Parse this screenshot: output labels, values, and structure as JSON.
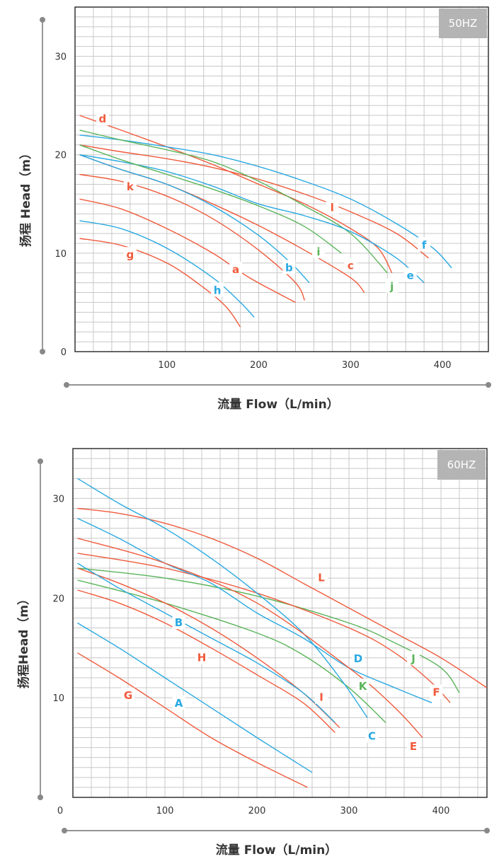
{
  "colors": {
    "red": "#f05a3c",
    "blue": "#29a9e1",
    "green": "#5ab45a",
    "grid": "#c8c8c8",
    "axis": "#555555",
    "badge": "#b4b4b4"
  },
  "chart_data": [
    {
      "type": "line",
      "badge": "50HZ",
      "xlabel": "流量 Flow（L/min）",
      "ylabel": "扬程 Head（m）",
      "xlim": [
        0,
        450
      ],
      "ylim": [
        0,
        35
      ],
      "xticks": [
        "100",
        "200",
        "300",
        "400"
      ],
      "yticks": [
        "0",
        "10",
        "20",
        "30"
      ],
      "series": [
        {
          "name": "d",
          "color": "red",
          "points": [
            [
              5,
              24
            ],
            [
              50,
              22.5
            ],
            [
              100,
              20.8
            ],
            [
              150,
              19
            ],
            [
              200,
              17
            ],
            [
              250,
              15
            ],
            [
              300,
              12.5
            ],
            [
              330,
              10.5
            ],
            [
              345,
              8
            ]
          ]
        },
        {
          "name": "l",
          "color": "red",
          "points": [
            [
              5,
              21
            ],
            [
              50,
              20.3
            ],
            [
              100,
              19.6
            ],
            [
              150,
              18.7
            ],
            [
              200,
              17.5
            ],
            [
              250,
              16
            ],
            [
              300,
              14.2
            ],
            [
              350,
              12
            ],
            [
              385,
              9.5
            ]
          ]
        },
        {
          "name": "f",
          "color": "blue",
          "points": [
            [
              5,
              22
            ],
            [
              50,
              21.5
            ],
            [
              100,
              20.8
            ],
            [
              150,
              20
            ],
            [
              200,
              18.8
            ],
            [
              250,
              17.3
            ],
            [
              300,
              15.5
            ],
            [
              350,
              13
            ],
            [
              390,
              10.5
            ],
            [
              410,
              8.5
            ]
          ]
        },
        {
          "name": "j",
          "color": "green",
          "points": [
            [
              5,
              22.5
            ],
            [
              50,
              21.5
            ],
            [
              100,
              20.5
            ],
            [
              150,
              19.3
            ],
            [
              200,
              17.3
            ],
            [
              250,
              14.8
            ],
            [
              300,
              12
            ],
            [
              340,
              8
            ]
          ]
        },
        {
          "name": "e",
          "color": "blue",
          "points": [
            [
              5,
              20
            ],
            [
              50,
              19.3
            ],
            [
              100,
              18.3
            ],
            [
              150,
              16.8
            ],
            [
              200,
              15
            ],
            [
              250,
              13.8
            ],
            [
              300,
              12.2
            ],
            [
              350,
              9.5
            ],
            [
              380,
              7
            ]
          ]
        },
        {
          "name": "i",
          "color": "green",
          "points": [
            [
              5,
              21
            ],
            [
              50,
              19.5
            ],
            [
              100,
              18
            ],
            [
              150,
              16.5
            ],
            [
              200,
              14.8
            ],
            [
              250,
              12.7
            ],
            [
              290,
              10
            ]
          ]
        },
        {
          "name": "c",
          "color": "red",
          "points": [
            [
              5,
              20
            ],
            [
              50,
              18.5
            ],
            [
              100,
              17
            ],
            [
              150,
              15
            ],
            [
              200,
              12.8
            ],
            [
              250,
              10.3
            ],
            [
              300,
              7.5
            ],
            [
              315,
              6
            ]
          ]
        },
        {
          "name": "b",
          "color": "blue",
          "points": [
            [
              5,
              20
            ],
            [
              50,
              18.5
            ],
            [
              100,
              17
            ],
            [
              150,
              14.8
            ],
            [
              200,
              11.8
            ],
            [
              235,
              9
            ],
            [
              255,
              7
            ]
          ]
        },
        {
          "name": "k",
          "color": "red",
          "points": [
            [
              5,
              18
            ],
            [
              50,
              17.3
            ],
            [
              100,
              15.8
            ],
            [
              150,
              13.5
            ],
            [
              200,
              10.3
            ],
            [
              240,
              7
            ],
            [
              250,
              5.2
            ]
          ]
        },
        {
          "name": "a",
          "color": "red",
          "points": [
            [
              5,
              15.5
            ],
            [
              50,
              14.5
            ],
            [
              100,
              12.5
            ],
            [
              150,
              10
            ],
            [
              190,
              7.5
            ],
            [
              240,
              5
            ]
          ]
        },
        {
          "name": "h",
          "color": "blue",
          "points": [
            [
              5,
              13.3
            ],
            [
              50,
              12.5
            ],
            [
              100,
              10.5
            ],
            [
              150,
              7.5
            ],
            [
              180,
              5
            ],
            [
              195,
              3.5
            ]
          ]
        },
        {
          "name": "g",
          "color": "red",
          "points": [
            [
              5,
              11.5
            ],
            [
              50,
              10.8
            ],
            [
              100,
              9
            ],
            [
              140,
              6.5
            ],
            [
              165,
              4.5
            ],
            [
              180,
              2.5
            ]
          ]
        }
      ]
    },
    {
      "type": "line",
      "badge": "60HZ",
      "xlabel": "流量 Flow（L/min）",
      "ylabel": "扬程Head（m）",
      "xlim": [
        0,
        450
      ],
      "ylim": [
        0,
        35
      ],
      "xticks": [
        "0",
        "100",
        "200",
        "300",
        "400"
      ],
      "yticks": [
        "10",
        "20",
        "30"
      ],
      "series": [
        {
          "name": "L",
          "color": "red",
          "points": [
            [
              5,
              29
            ],
            [
              50,
              28.5
            ],
            [
              100,
              27.5
            ],
            [
              150,
              26
            ],
            [
              200,
              24
            ],
            [
              250,
              21.5
            ],
            [
              300,
              19
            ],
            [
              350,
              16.5
            ],
            [
              400,
              14
            ],
            [
              450,
              11
            ]
          ]
        },
        {
          "name": "J",
          "color": "green",
          "points": [
            [
              5,
              23
            ],
            [
              100,
              22
            ],
            [
              200,
              20.2
            ],
            [
              300,
              17.5
            ],
            [
              350,
              15.5
            ],
            [
              400,
              13
            ],
            [
              420,
              10.5
            ]
          ]
        },
        {
          "name": "F",
          "color": "red",
          "points": [
            [
              5,
              24.5
            ],
            [
              100,
              23
            ],
            [
              200,
              20.5
            ],
            [
              300,
              17
            ],
            [
              350,
              14.5
            ],
            [
              390,
              11.5
            ],
            [
              410,
              9.5
            ]
          ]
        },
        {
          "name": "D",
          "color": "blue",
          "points": [
            [
              5,
              28
            ],
            [
              50,
              26
            ],
            [
              100,
              23.5
            ],
            [
              150,
              21.5
            ],
            [
              200,
              18.5
            ],
            [
              250,
              16
            ],
            [
              300,
              13
            ],
            [
              350,
              11
            ],
            [
              390,
              9.5
            ]
          ]
        },
        {
          "name": "K",
          "color": "green",
          "points": [
            [
              5,
              21.8
            ],
            [
              100,
              19.5
            ],
            [
              200,
              16.5
            ],
            [
              250,
              14.3
            ],
            [
              300,
              11
            ],
            [
              340,
              7.5
            ]
          ]
        },
        {
          "name": "C",
          "color": "blue",
          "points": [
            [
              5,
              32
            ],
            [
              50,
              29.5
            ],
            [
              100,
              27
            ],
            [
              150,
              24
            ],
            [
              200,
              20.5
            ],
            [
              250,
              16.5
            ],
            [
              290,
              12
            ],
            [
              320,
              8
            ]
          ]
        },
        {
          "name": "E",
          "color": "red",
          "points": [
            [
              5,
              26
            ],
            [
              100,
              23.5
            ],
            [
              200,
              19.5
            ],
            [
              300,
              13
            ],
            [
              350,
              9
            ],
            [
              380,
              6
            ]
          ]
        },
        {
          "name": "I",
          "color": "red",
          "points": [
            [
              5,
              23
            ],
            [
              50,
              21.5
            ],
            [
              100,
              19.5
            ],
            [
              150,
              17
            ],
            [
              200,
              14
            ],
            [
              250,
              10.5
            ],
            [
              290,
              7
            ]
          ]
        },
        {
          "name": "B",
          "color": "blue",
          "points": [
            [
              5,
              23.5
            ],
            [
              50,
              21
            ],
            [
              100,
              18.5
            ],
            [
              150,
              16
            ],
            [
              200,
              13.5
            ],
            [
              250,
              10.5
            ],
            [
              285,
              7.5
            ]
          ]
        },
        {
          "name": "H",
          "color": "red",
          "points": [
            [
              5,
              20.8
            ],
            [
              50,
              19.5
            ],
            [
              100,
              17.5
            ],
            [
              150,
              15
            ],
            [
              200,
              12.3
            ],
            [
              250,
              9.5
            ],
            [
              285,
              6.5
            ]
          ]
        },
        {
          "name": "A",
          "color": "blue",
          "points": [
            [
              5,
              17.5
            ],
            [
              50,
              15
            ],
            [
              100,
              12
            ],
            [
              150,
              9
            ],
            [
              200,
              6
            ],
            [
              260,
              2.5
            ]
          ]
        },
        {
          "name": "G",
          "color": "red",
          "points": [
            [
              5,
              14.5
            ],
            [
              50,
              12
            ],
            [
              100,
              9
            ],
            [
              150,
              6
            ],
            [
              200,
              3.5
            ],
            [
              255,
              1
            ]
          ]
        }
      ]
    }
  ]
}
